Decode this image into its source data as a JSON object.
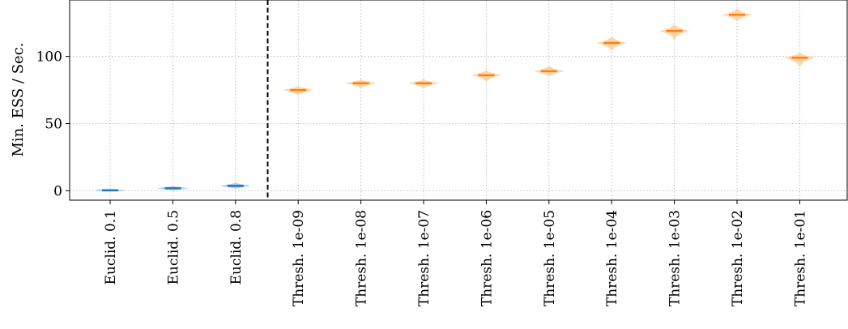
{
  "chart_data": {
    "type": "violin",
    "title": "",
    "xlabel": "",
    "ylabel": "Min. ESS / Sec.",
    "ylim": [
      -7,
      142
    ],
    "yticks": [
      0,
      50,
      100
    ],
    "grid": true,
    "separator_after_index": 2,
    "categories": [
      "Euclid. 0.1",
      "Euclid. 0.5",
      "Euclid. 0.8",
      "Thresh. 1e-09",
      "Thresh. 1e-08",
      "Thresh. 1e-07",
      "Thresh. 1e-06",
      "Thresh. 1e-05",
      "Thresh. 1e-04",
      "Thresh. 1e-03",
      "Thresh. 1e-02",
      "Thresh. 1e-01"
    ],
    "series": [
      {
        "group": "Euclid",
        "color": "#1f77b4",
        "fill": "#aec7e8",
        "points": [
          {
            "category": "Euclid. 0.1",
            "median": 0.3,
            "min": -0.2,
            "max": 0.8
          },
          {
            "category": "Euclid. 0.5",
            "median": 1.8,
            "min": 0.5,
            "max": 3.5
          },
          {
            "category": "Euclid. 0.8",
            "median": 3.6,
            "min": 1.5,
            "max": 6.0
          }
        ]
      },
      {
        "group": "Thresh",
        "color": "#ff7f0e",
        "fill": "#ffcf9e",
        "points": [
          {
            "category": "Thresh. 1e-09",
            "median": 75,
            "min": 71,
            "max": 78
          },
          {
            "category": "Thresh. 1e-08",
            "median": 80,
            "min": 76,
            "max": 83
          },
          {
            "category": "Thresh. 1e-07",
            "median": 80,
            "min": 76,
            "max": 83
          },
          {
            "category": "Thresh. 1e-06",
            "median": 86,
            "min": 81,
            "max": 90
          },
          {
            "category": "Thresh. 1e-05",
            "median": 89,
            "min": 85,
            "max": 93
          },
          {
            "category": "Thresh. 1e-04",
            "median": 110,
            "min": 104,
            "max": 115
          },
          {
            "category": "Thresh. 1e-03",
            "median": 119,
            "min": 112,
            "max": 124
          },
          {
            "category": "Thresh. 1e-02",
            "median": 131,
            "min": 126,
            "max": 136
          },
          {
            "category": "Thresh. 1e-01",
            "median": 99,
            "min": 92,
            "max": 103
          }
        ]
      }
    ]
  }
}
